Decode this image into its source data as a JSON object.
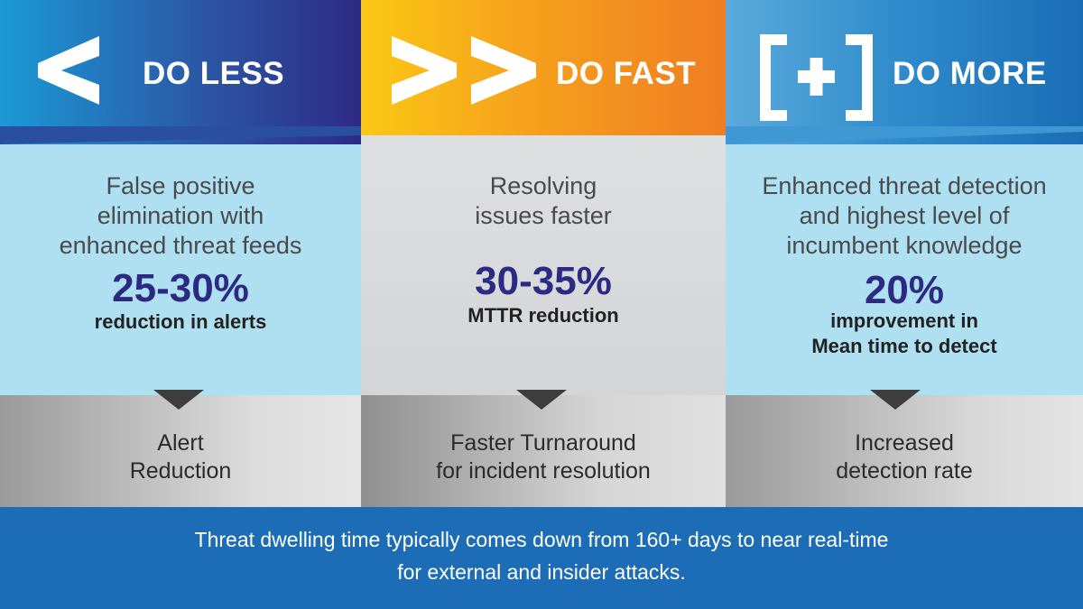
{
  "columns": [
    {
      "title": "DO LESS",
      "icon": "less-than-icon",
      "desc": [
        "False positive",
        "elimination with",
        "enhanced threat feeds"
      ],
      "stat": "25-30%",
      "stat_sub": [
        "reduction in alerts"
      ],
      "result": [
        "Alert",
        "Reduction"
      ]
    },
    {
      "title": "DO FAST",
      "icon": "double-chevron-right-icon",
      "desc": [
        "Resolving",
        "issues faster"
      ],
      "stat": "30-35%",
      "stat_sub": [
        "MTTR reduction"
      ],
      "result": [
        "Faster Turnaround",
        "for incident resolution"
      ]
    },
    {
      "title": "DO MORE",
      "icon": "bracket-plus-icon",
      "desc": [
        "Enhanced threat detection",
        "and highest level of",
        "incumbent knowledge"
      ],
      "stat": "20%",
      "stat_sub": [
        "improvement in",
        "Mean time to detect"
      ],
      "result": [
        "Increased",
        "detection rate"
      ]
    }
  ],
  "footer": {
    "line1": "Threat dwelling time typically comes down from 160+ days to near real-time",
    "line2": "for external and insider attacks."
  },
  "colors": {
    "navy": "#2d2a84",
    "orange": "#ef7d22",
    "yellow": "#fbc815",
    "blue": "#1c6db6",
    "light_blue": "#aee0f1"
  }
}
